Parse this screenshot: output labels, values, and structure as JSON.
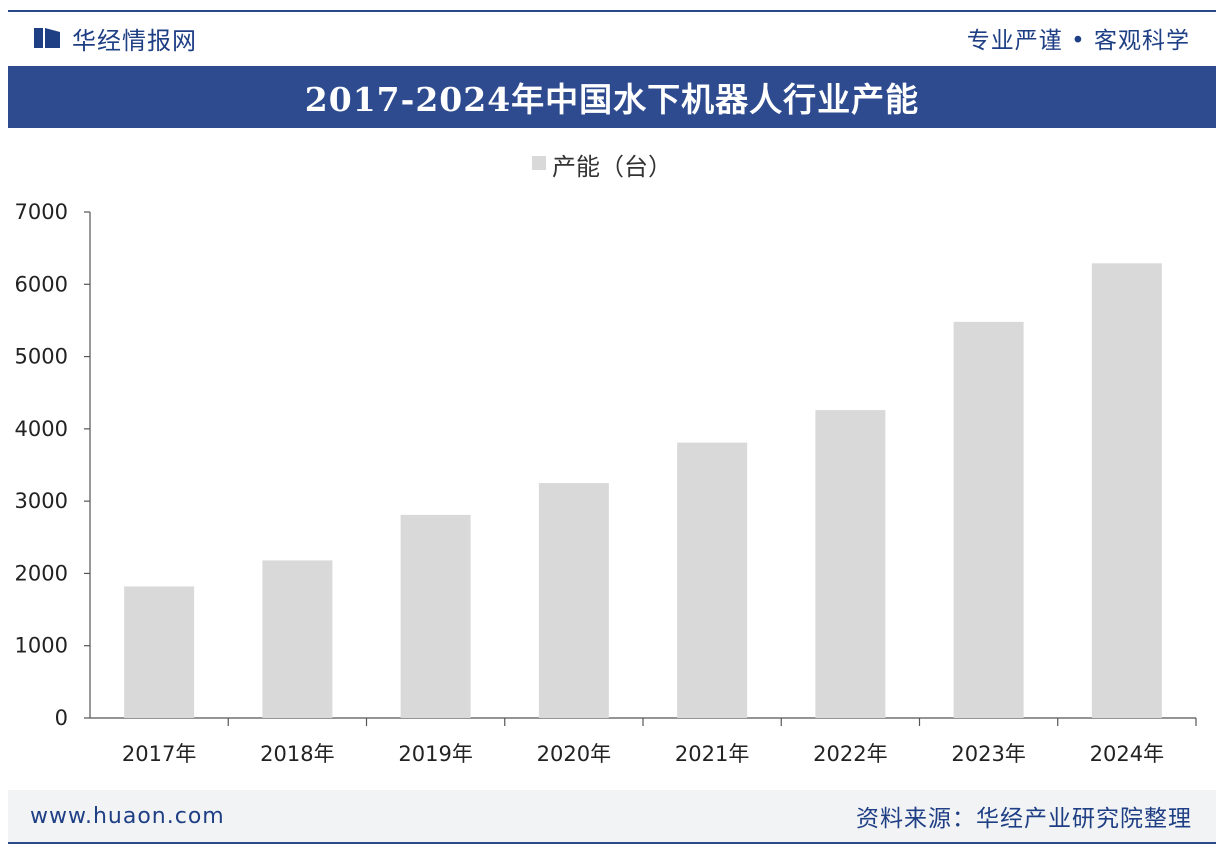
{
  "header": {
    "brand_name": "华经情报网",
    "slogan": "专业严谨 • 客观科学"
  },
  "title": "2017-2024年中国水下机器人行业产能",
  "footer": {
    "url": "www.huaon.com",
    "source": "资料来源：华经产业研究院整理"
  },
  "colors": {
    "brand_blue": "#2e4b8f",
    "bar_fill": "#d9d9d9",
    "footer_bg": "#f2f3f5"
  },
  "chart_data": {
    "type": "bar",
    "categories": [
      "2017年",
      "2018年",
      "2019年",
      "2020年",
      "2021年",
      "2022年",
      "2023年",
      "2024年"
    ],
    "series": [
      {
        "name": "产能（台）",
        "values": [
          1820,
          2180,
          2810,
          3250,
          3810,
          4260,
          5480,
          6290
        ]
      }
    ],
    "ylim": [
      0,
      7000
    ],
    "yticks": [
      "0",
      "1000",
      "2000",
      "3000",
      "4000",
      "5000",
      "6000",
      "7000"
    ],
    "legend_position": "top-center",
    "grid": false
  }
}
